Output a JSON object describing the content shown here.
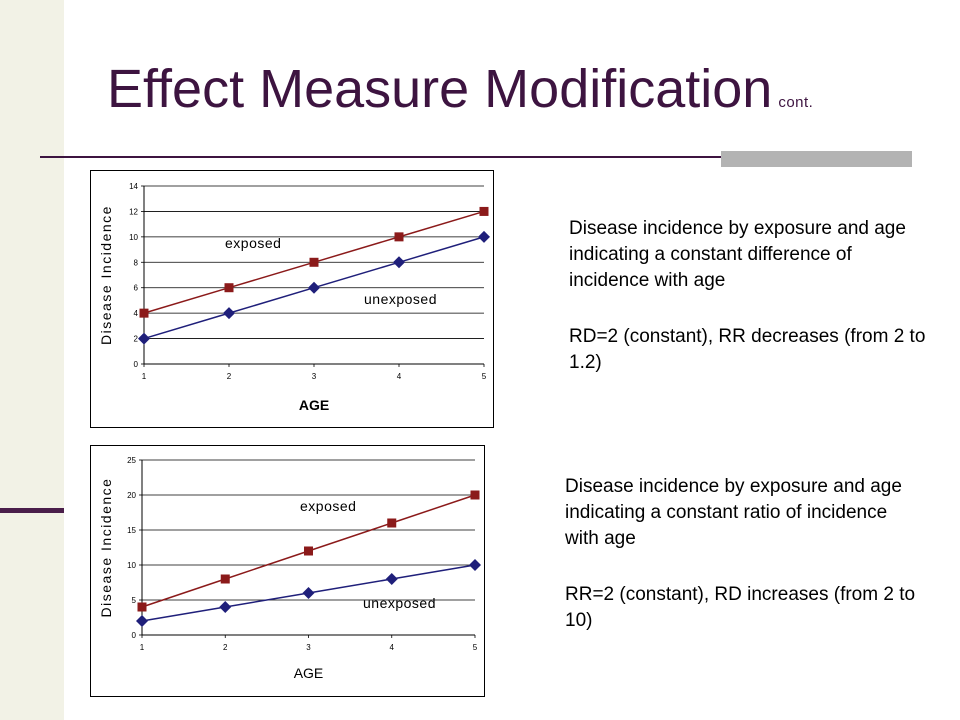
{
  "slide": {
    "title": "Effect Measure Modification",
    "title_suffix": "cont.",
    "accent_color": "#3d1440"
  },
  "descriptions": [
    {
      "caption": "Disease incidence by exposure and age indicating a constant difference of incidence with age",
      "measures": "RD=2 (constant), RR decreases (from 2 to 1.2)"
    },
    {
      "caption": "Disease incidence by exposure and age indicating a constant ratio of incidence with age",
      "measures": "RR=2 (constant), RD increases (from 2 to 10)"
    }
  ],
  "chart_data": [
    {
      "type": "line",
      "x": [
        1,
        2,
        3,
        4,
        5
      ],
      "xlabel": "AGE",
      "ylabel": "Disease Incidence",
      "xlim": [
        1,
        5
      ],
      "ylim": [
        0,
        14
      ],
      "yticks": [
        0,
        2,
        4,
        6,
        8,
        10,
        12,
        14
      ],
      "grid": true,
      "series": [
        {
          "name": "exposed",
          "values": [
            4,
            6,
            8,
            10,
            12
          ],
          "color": "#8b1a1a",
          "marker": "square"
        },
        {
          "name": "unexposed",
          "values": [
            2,
            4,
            6,
            8,
            10
          ],
          "color": "#1f1f7a",
          "marker": "diamond"
        }
      ]
    },
    {
      "type": "line",
      "x": [
        1,
        2,
        3,
        4,
        5
      ],
      "xlabel": "AGE",
      "ylabel": "Disease Incidence",
      "xlim": [
        1,
        5
      ],
      "ylim": [
        0,
        25
      ],
      "yticks": [
        0,
        5,
        10,
        15,
        20,
        25
      ],
      "grid": true,
      "series": [
        {
          "name": "exposed",
          "values": [
            4,
            8,
            12,
            16,
            20
          ],
          "color": "#8b1a1a",
          "marker": "square"
        },
        {
          "name": "unexposed",
          "values": [
            2,
            4,
            6,
            8,
            10
          ],
          "color": "#1f1f7a",
          "marker": "diamond"
        }
      ]
    }
  ]
}
